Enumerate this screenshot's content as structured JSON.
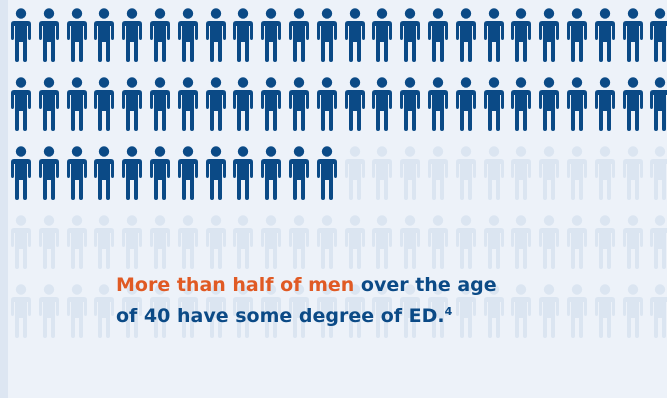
{
  "graphic": {
    "icon": "person-icon",
    "total_figures": 120,
    "highlighted_figures": 60,
    "highlighted_fraction": 0.5,
    "colors": {
      "highlighted": "#0b4a86",
      "faded": "#dbe5f1",
      "background": "#edf2f9",
      "accent": "#e05a24"
    }
  },
  "caption": {
    "highlight": "More than half of men",
    "rest_line1": " over the age",
    "rest_line2": "of 40 have some degree of ED.",
    "footnote": "4"
  }
}
